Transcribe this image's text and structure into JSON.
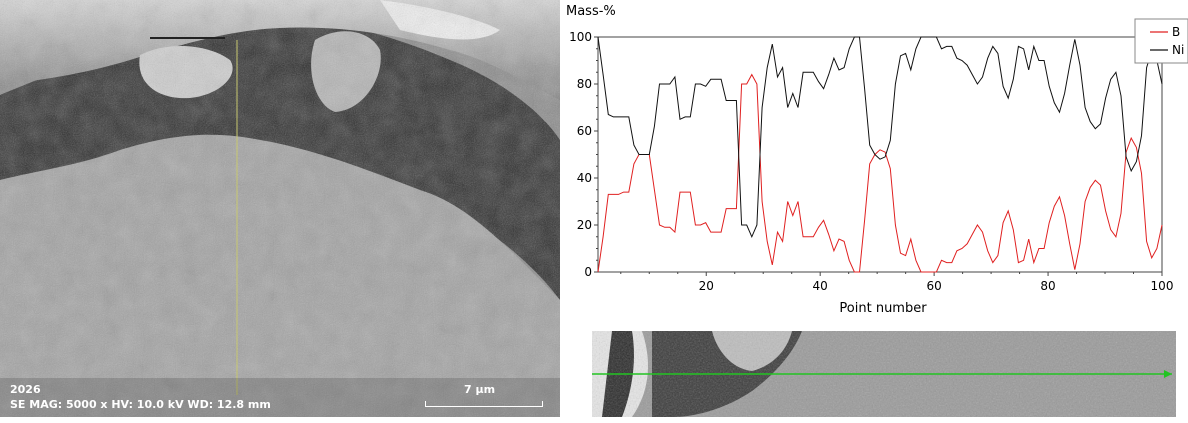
{
  "sem": {
    "image_id": "2026",
    "params": "SE  MAG: 5000 x  HV: 10.0 kV  WD: 12.8 mm",
    "scale_label": "7 µm"
  },
  "colors": {
    "B": "#e02020",
    "Ni": "#111111",
    "scan_line": "#22c422"
  },
  "chart_data": {
    "type": "line",
    "ylabel": "Mass-%",
    "xlabel": "Point number",
    "xlim": [
      1,
      100
    ],
    "ylim": [
      0,
      100
    ],
    "xticks": [
      20,
      40,
      60,
      80,
      100
    ],
    "yticks": [
      0,
      20,
      40,
      60,
      80,
      100
    ],
    "legend_position": "top-right",
    "series": [
      {
        "name": "B",
        "color": "#e02020",
        "values": [
          0,
          15,
          33,
          33,
          33,
          34,
          34,
          46,
          50,
          50,
          50,
          35,
          20,
          19,
          19,
          17,
          34,
          34,
          34,
          20,
          20,
          21,
          17,
          17,
          17,
          27,
          27,
          27,
          80,
          80,
          84,
          80,
          30,
          13,
          3,
          17,
          13,
          30,
          24,
          30,
          15,
          15,
          15,
          19,
          22,
          16,
          9,
          14,
          13,
          5,
          0,
          0,
          22,
          46,
          50,
          52,
          51,
          44,
          20,
          8,
          7,
          14,
          5,
          0,
          0,
          0,
          0,
          5,
          4,
          4,
          9,
          10,
          12,
          16,
          20,
          17,
          9,
          4,
          7,
          21,
          26,
          18,
          4,
          5,
          14,
          4,
          10,
          10,
          21,
          28,
          32,
          24,
          12,
          1,
          12,
          30,
          36,
          39,
          37,
          26,
          18,
          15,
          25,
          51,
          57,
          53,
          42,
          13,
          6,
          10,
          20
        ]
      },
      {
        "name": "Ni",
        "color": "#111111",
        "values": [
          100,
          84,
          67,
          66,
          66,
          66,
          66,
          54,
          50,
          50,
          50,
          62,
          80,
          80,
          80,
          83,
          65,
          66,
          66,
          80,
          80,
          79,
          82,
          82,
          82,
          73,
          73,
          73,
          20,
          20,
          15,
          20,
          70,
          87,
          97,
          83,
          87,
          70,
          76,
          70,
          85,
          85,
          85,
          81,
          78,
          84,
          91,
          86,
          87,
          95,
          100,
          100,
          78,
          54,
          50,
          48,
          49,
          56,
          80,
          92,
          93,
          86,
          95,
          100,
          100,
          100,
          100,
          95,
          96,
          96,
          91,
          90,
          88,
          84,
          80,
          83,
          91,
          96,
          93,
          79,
          74,
          82,
          96,
          95,
          86,
          96,
          90,
          90,
          79,
          72,
          68,
          76,
          88,
          99,
          88,
          70,
          64,
          61,
          63,
          74,
          82,
          85,
          75,
          49,
          43,
          47,
          58,
          87,
          94,
          90,
          80
        ]
      }
    ]
  },
  "strip": {
    "scan_line": "EDS line scan path"
  }
}
